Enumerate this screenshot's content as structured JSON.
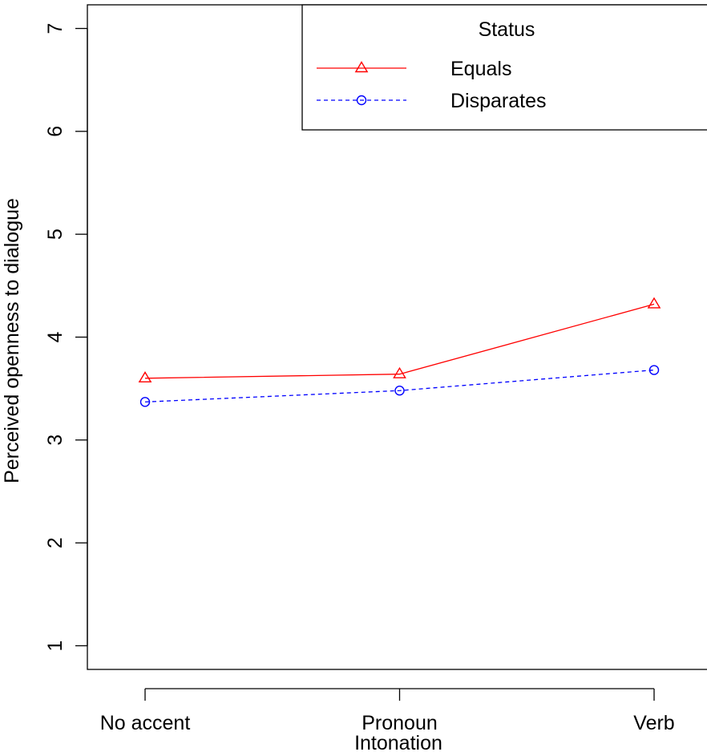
{
  "chart_data": {
    "type": "line",
    "title": "",
    "xlabel": "Intonation",
    "ylabel": "Perceived openness to dialogue",
    "categories": [
      "No accent",
      "Pronoun",
      "Verb"
    ],
    "ylim": [
      0.77,
      7.23
    ],
    "yticks": [
      "1",
      "2",
      "3",
      "4",
      "5",
      "6",
      "7"
    ],
    "grid": false,
    "legend": {
      "title": "Status",
      "position": "top-right"
    },
    "series": [
      {
        "name": "Equals",
        "values": [
          3.6,
          3.64,
          4.32
        ],
        "color": "#ff0000",
        "marker": "triangle",
        "line": "solid"
      },
      {
        "name": "Disparates",
        "values": [
          3.37,
          3.48,
          3.68
        ],
        "color": "#0000ff",
        "marker": "circle",
        "line": "dashed"
      }
    ]
  }
}
